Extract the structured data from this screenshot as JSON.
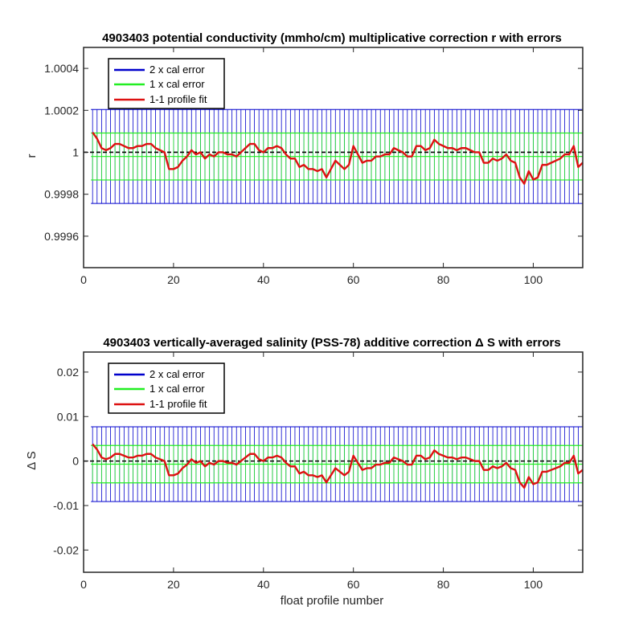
{
  "chart_data": [
    {
      "type": "line",
      "title": "4903403 potential conductivity (mmho/cm) multiplicative correction r with errors",
      "xlabel": "",
      "ylabel": "r",
      "xlim": [
        0,
        111
      ],
      "ylim": [
        0.99945,
        1.0005
      ],
      "xticks": [
        0,
        20,
        40,
        60,
        80,
        100
      ],
      "xtick_labels": [
        "0",
        "20",
        "40",
        "60",
        "80",
        "100"
      ],
      "yticks": [
        0.9996,
        0.9998,
        1.0,
        1.0002,
        1.0004
      ],
      "ytick_labels": [
        "0.9996",
        "0.9998",
        "1",
        "1.0002",
        "1.0004"
      ],
      "legend": {
        "position": "top-left",
        "entries": [
          "2 x cal error",
          "1 x cal error",
          "1-1 profile fit"
        ]
      },
      "colors": {
        "two_x": "#0000cc",
        "one_x": "#22ee22",
        "fit": "#dd1111",
        "ref": "#000000"
      },
      "series": [
        {
          "name": "1-1 profile fit",
          "x": [
            2,
            3,
            4,
            5,
            6,
            7,
            8,
            9,
            10,
            11,
            12,
            13,
            14,
            15,
            16,
            17,
            18,
            19,
            20,
            21,
            22,
            23,
            24,
            25,
            26,
            27,
            28,
            29,
            30,
            31,
            32,
            33,
            34,
            35,
            36,
            37,
            38,
            39,
            40,
            41,
            42,
            43,
            44,
            45,
            46,
            47,
            48,
            49,
            50,
            51,
            52,
            53,
            54,
            55,
            56,
            57,
            58,
            59,
            60,
            61,
            62,
            63,
            64,
            65,
            66,
            67,
            68,
            69,
            70,
            71,
            72,
            73,
            74,
            75,
            76,
            77,
            78,
            79,
            80,
            81,
            82,
            83,
            84,
            85,
            86,
            87,
            88,
            89,
            90,
            91,
            92,
            93,
            94,
            95,
            96,
            97,
            98,
            99,
            100,
            101,
            102,
            103,
            104,
            105,
            106,
            107,
            108,
            109,
            110,
            111
          ],
          "y": [
            1.000095,
            1.000065,
            1.00002,
            1.00001,
            1.00002,
            1.00004,
            1.00004,
            1.00003,
            1.00002,
            1.00002,
            1.00003,
            1.00003,
            1.00004,
            1.00004,
            1.00002,
            1.00001,
            1.0,
            0.99992,
            0.99992,
            0.99993,
            0.99996,
            0.99998,
            1.00001,
            0.99999,
            1.0,
            0.99997,
            0.99999,
            0.99998,
            1.0,
            1.0,
            0.99999,
            0.99999,
            0.99998,
            1.0,
            1.00002,
            1.00004,
            1.00004,
            1.00001,
            1.0,
            1.00002,
            1.00002,
            1.00003,
            1.00002,
            0.99999,
            0.99997,
            0.99997,
            0.99993,
            0.99994,
            0.99992,
            0.99992,
            0.99991,
            0.99992,
            0.99988,
            0.99992,
            0.99996,
            0.99994,
            0.99992,
            0.99994,
            1.00003,
            0.99999,
            0.99995,
            0.99996,
            0.99996,
            0.99998,
            0.99998,
            0.99999,
            0.99999,
            1.00002,
            1.00001,
            1.0,
            0.99998,
            0.99998,
            1.00003,
            1.00003,
            1.00001,
            1.00002,
            1.00006,
            1.00004,
            1.00003,
            1.00002,
            1.00002,
            1.00001,
            1.00002,
            1.00002,
            1.00001,
            1.0,
            1.0,
            0.99995,
            0.99995,
            0.99997,
            0.99996,
            0.99997,
            0.99999,
            0.99996,
            0.99995,
            0.99988,
            0.99985,
            0.99991,
            0.99987,
            0.99988,
            0.99994,
            0.99994,
            0.99995,
            0.99996,
            0.99997,
            0.99999,
            0.99999,
            1.00003,
            0.99993,
            0.99995
          ]
        }
      ],
      "cal_error": {
        "center": 0.99998,
        "one_x": 0.000112,
        "two_x": 0.000224
      },
      "reference_line": 1.0,
      "grid": false
    },
    {
      "type": "line",
      "title": "4903403 vertically-averaged salinity (PSS-78) additive correction Δ S with errors",
      "xlabel": "float profile number",
      "ylabel": "Δ S",
      "xlim": [
        0,
        111
      ],
      "ylim": [
        -0.025,
        0.0245
      ],
      "xticks": [
        0,
        20,
        40,
        60,
        80,
        100
      ],
      "xtick_labels": [
        "0",
        "20",
        "40",
        "60",
        "80",
        "100"
      ],
      "yticks": [
        -0.02,
        -0.01,
        0,
        0.01,
        0.02
      ],
      "ytick_labels": [
        "-0.02",
        "-0.01",
        "0",
        "0.01",
        "0.02"
      ],
      "legend": {
        "position": "top-left",
        "entries": [
          "2 x cal error",
          "1 x cal error",
          "1-1 profile fit"
        ]
      },
      "colors": {
        "two_x": "#0000cc",
        "one_x": "#22ee22",
        "fit": "#dd1111",
        "ref": "#000000"
      },
      "series": [
        {
          "name": "1-1 profile fit",
          "x": [
            2,
            3,
            4,
            5,
            6,
            7,
            8,
            9,
            10,
            11,
            12,
            13,
            14,
            15,
            16,
            17,
            18,
            19,
            20,
            21,
            22,
            23,
            24,
            25,
            26,
            27,
            28,
            29,
            30,
            31,
            32,
            33,
            34,
            35,
            36,
            37,
            38,
            39,
            40,
            41,
            42,
            43,
            44,
            45,
            46,
            47,
            48,
            49,
            50,
            51,
            52,
            53,
            54,
            55,
            56,
            57,
            58,
            59,
            60,
            61,
            62,
            63,
            64,
            65,
            66,
            67,
            68,
            69,
            70,
            71,
            72,
            73,
            74,
            75,
            76,
            77,
            78,
            79,
            80,
            81,
            82,
            83,
            84,
            85,
            86,
            87,
            88,
            89,
            90,
            91,
            92,
            93,
            94,
            95,
            96,
            97,
            98,
            99,
            100,
            101,
            102,
            103,
            104,
            105,
            106,
            107,
            108,
            109,
            110,
            111
          ],
          "y": [
            0.0038,
            0.0026,
            0.0008,
            0.0004,
            0.0008,
            0.0016,
            0.0016,
            0.0012,
            0.0008,
            0.0008,
            0.0012,
            0.0012,
            0.0016,
            0.0016,
            0.0008,
            0.0004,
            0.0,
            -0.0032,
            -0.0032,
            -0.0028,
            -0.0016,
            -0.0008,
            0.0004,
            -0.0004,
            0.0,
            -0.0012,
            -0.0004,
            -0.0008,
            0.0,
            0.0,
            -0.0004,
            -0.0004,
            -0.0008,
            0.0,
            0.0008,
            0.0016,
            0.0016,
            0.0004,
            0.0,
            0.0008,
            0.0008,
            0.0012,
            0.0008,
            -0.0004,
            -0.0012,
            -0.0012,
            -0.0028,
            -0.0024,
            -0.0032,
            -0.0032,
            -0.0036,
            -0.0032,
            -0.0048,
            -0.0032,
            -0.0016,
            -0.0024,
            -0.0032,
            -0.0024,
            0.0012,
            -0.0004,
            -0.002,
            -0.0016,
            -0.0016,
            -0.0008,
            -0.0008,
            -0.0004,
            -0.0004,
            0.0008,
            0.0004,
            0.0,
            -0.0008,
            -0.0008,
            0.0012,
            0.0012,
            0.0004,
            0.0008,
            0.0024,
            0.0016,
            0.0012,
            0.0008,
            0.0008,
            0.0004,
            0.0008,
            0.0008,
            0.0004,
            0.0,
            0.0,
            -0.002,
            -0.002,
            -0.0012,
            -0.0016,
            -0.0012,
            -0.0004,
            -0.0016,
            -0.002,
            -0.0048,
            -0.006,
            -0.0036,
            -0.0052,
            -0.0048,
            -0.0024,
            -0.0024,
            -0.002,
            -0.0016,
            -0.0012,
            -0.0004,
            -0.0004,
            0.0012,
            -0.0028,
            -0.002
          ]
        }
      ],
      "cal_error": {
        "center": -0.0007,
        "one_x": 0.0042,
        "two_x": 0.0084
      },
      "reference_line": 0,
      "grid": false
    }
  ]
}
